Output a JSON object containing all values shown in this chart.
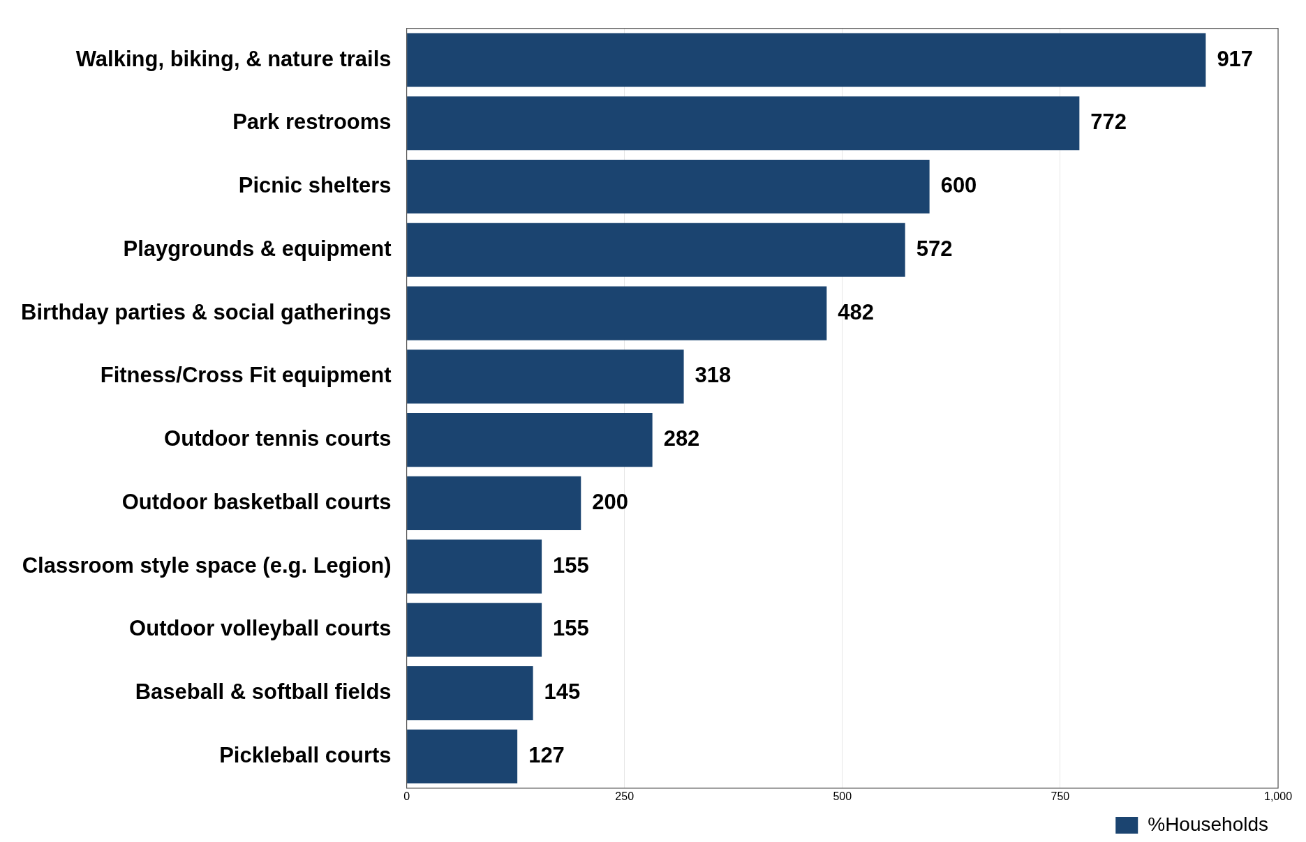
{
  "chart_data": {
    "type": "bar",
    "orientation": "horizontal",
    "categories": [
      "Walking, biking, & nature trails",
      "Park restrooms",
      "Picnic shelters",
      "Playgrounds & equipment",
      "Birthday parties & social gatherings",
      "Fitness/Cross Fit equipment",
      "Outdoor tennis courts",
      "Outdoor basketball courts",
      "Classroom style space (e.g. Legion)",
      "Outdoor volleyball courts",
      "Baseball & softball fields",
      "Pickleball courts"
    ],
    "series": [
      {
        "name": "%Households",
        "color": "#1b4470",
        "values": [
          917,
          772,
          600,
          572,
          482,
          318,
          282,
          200,
          155,
          155,
          145,
          127
        ]
      }
    ],
    "xlim": [
      0,
      1000
    ],
    "xticks": [
      0,
      250,
      500,
      750,
      {
        "value": 1000,
        "label": "1,000"
      }
    ],
    "grid": "x",
    "legend": "bottom right",
    "data_labels": true
  }
}
